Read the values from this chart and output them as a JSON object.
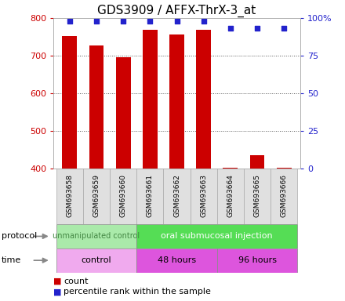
{
  "title": "GDS3909 / AFFX-ThrX-3_at",
  "samples": [
    "GSM693658",
    "GSM693659",
    "GSM693660",
    "GSM693661",
    "GSM693662",
    "GSM693663",
    "GSM693664",
    "GSM693665",
    "GSM693666"
  ],
  "bar_values": [
    752,
    728,
    695,
    768,
    757,
    769,
    403,
    435,
    402
  ],
  "percentile_values": [
    98,
    98,
    98,
    98,
    98,
    98,
    93,
    93,
    93
  ],
  "bar_color": "#cc0000",
  "dot_color": "#2222cc",
  "ylim_left": [
    400,
    800
  ],
  "ylim_right": [
    0,
    100
  ],
  "yticks_left": [
    400,
    500,
    600,
    700,
    800
  ],
  "yticks_right": [
    0,
    25,
    50,
    75,
    100
  ],
  "ytick_right_labels": [
    "0",
    "25",
    "50",
    "75",
    "100%"
  ],
  "grid_color": "#555555",
  "background_color": "#ffffff",
  "protocol_groups": [
    {
      "label": "unmanipulated control",
      "start": 0,
      "end": 3,
      "color": "#aaeaaa",
      "text_color": "#448844",
      "fontsize": 7
    },
    {
      "label": "oral submucosal injection",
      "start": 3,
      "end": 9,
      "color": "#55dd55",
      "text_color": "#ffffff",
      "fontsize": 8
    }
  ],
  "time_groups": [
    {
      "label": "control",
      "start": 0,
      "end": 3,
      "color": "#f0aaee"
    },
    {
      "label": "48 hours",
      "start": 3,
      "end": 6,
      "color": "#dd55dd"
    },
    {
      "label": "96 hours",
      "start": 6,
      "end": 9,
      "color": "#dd55dd"
    }
  ],
  "tick_label_color_left": "#cc0000",
  "tick_label_color_right": "#2222cc",
  "title_fontsize": 11,
  "bar_width": 0.55
}
